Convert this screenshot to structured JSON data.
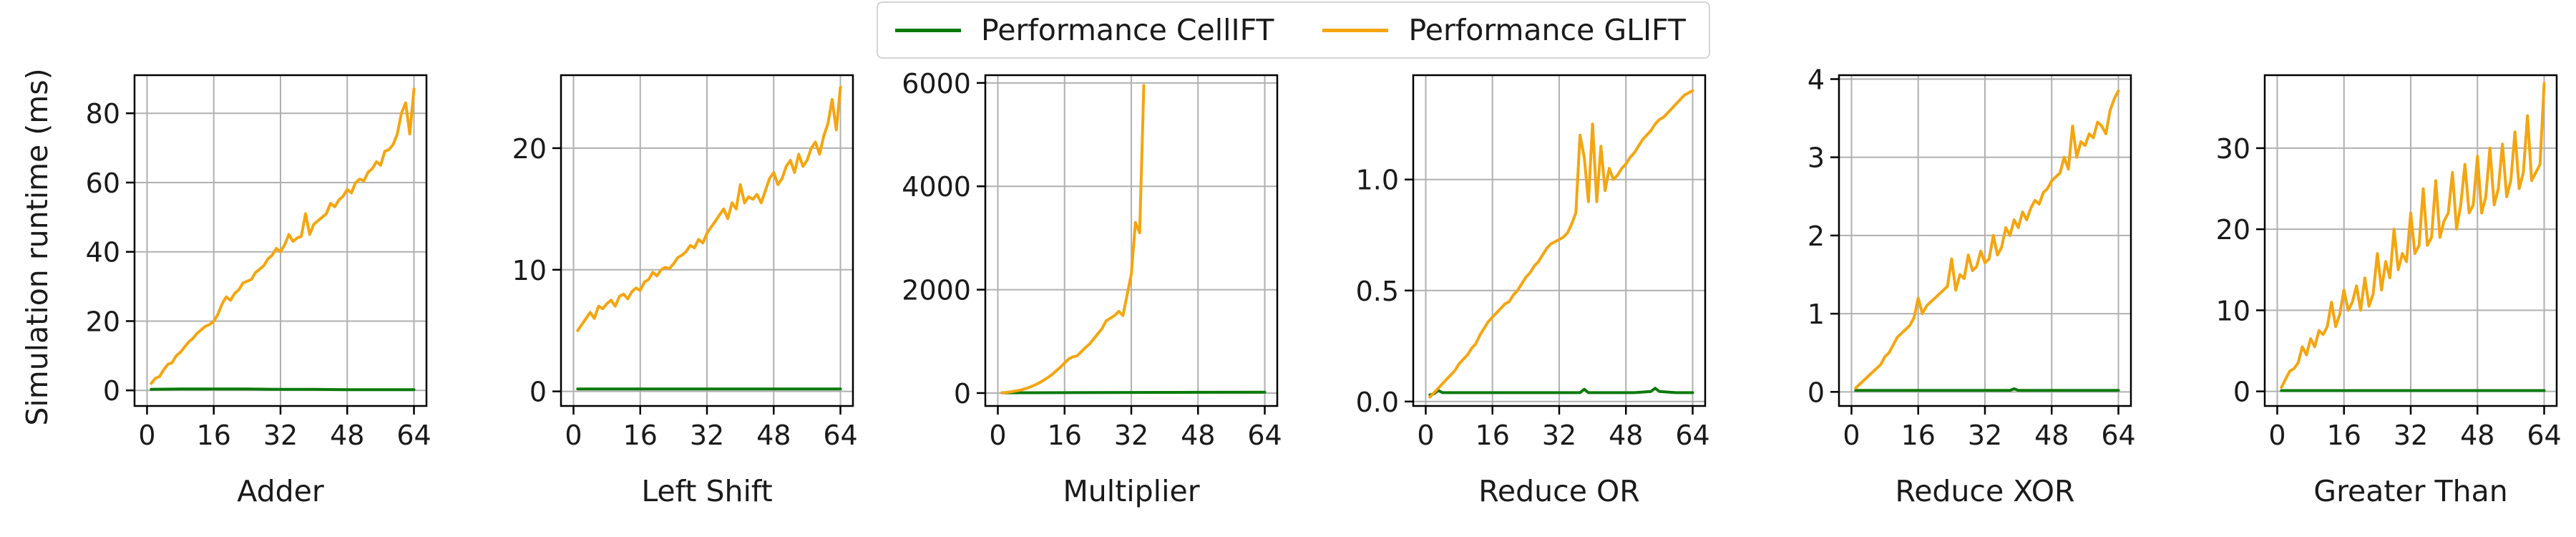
{
  "legend": {
    "placement": "upper-center",
    "items": [
      {
        "label": "Performance CellIFT",
        "color": "#0b7a0b"
      },
      {
        "label": "Performance GLIFT",
        "color": "#f5a50f"
      }
    ]
  },
  "shared_ylabel": "Simulation runtime (ms)",
  "chart_data": [
    {
      "type": "line",
      "xlabel": "Adder",
      "ylabel": "Simulation runtime (ms)",
      "xlim": [
        -3,
        67
      ],
      "ylim": [
        -4.5,
        91
      ],
      "xticks": [
        0,
        16,
        32,
        48,
        64
      ],
      "yticks": [
        0,
        20,
        40,
        60,
        80
      ],
      "grid": true,
      "series": [
        {
          "name": "Performance CellIFT",
          "color": "#0b7a0b",
          "x": [
            1,
            8,
            16,
            24,
            32,
            40,
            48,
            56,
            64
          ],
          "y": [
            0.3,
            0.4,
            0.4,
            0.4,
            0.3,
            0.3,
            0.2,
            0.2,
            0.2
          ]
        },
        {
          "name": "Performance GLIFT",
          "color": "#f5a50f",
          "x": [
            1,
            2,
            3,
            4,
            5,
            6,
            7,
            8,
            9,
            10,
            11,
            12,
            13,
            14,
            15,
            16,
            17,
            18,
            19,
            20,
            21,
            22,
            23,
            24,
            25,
            26,
            27,
            28,
            29,
            30,
            31,
            32,
            33,
            34,
            35,
            36,
            37,
            38,
            39,
            40,
            41,
            42,
            43,
            44,
            45,
            46,
            47,
            48,
            49,
            50,
            51,
            52,
            53,
            54,
            55,
            56,
            57,
            58,
            59,
            60,
            61,
            62,
            63,
            64
          ],
          "y": [
            2,
            3.5,
            4,
            6,
            7.5,
            8,
            10,
            11,
            12.5,
            14,
            15,
            16.5,
            17.5,
            18.5,
            19,
            20,
            22,
            25,
            27,
            26,
            28,
            29,
            31,
            31.5,
            32,
            34,
            35,
            36,
            38,
            39,
            41,
            40,
            42,
            45,
            43,
            44,
            44.5,
            51,
            45,
            48,
            49,
            50,
            51,
            54,
            53,
            55,
            56,
            58,
            57,
            60,
            61,
            60.5,
            63,
            64,
            66,
            65,
            69,
            69.5,
            71,
            74,
            80,
            83,
            74,
            87
          ]
        }
      ]
    },
    {
      "type": "line",
      "xlabel": "Left Shift",
      "ylabel": "",
      "xlim": [
        -3,
        67
      ],
      "ylim": [
        -1.2,
        26
      ],
      "xticks": [
        0,
        16,
        32,
        48,
        64
      ],
      "yticks": [
        0,
        10,
        20
      ],
      "grid": true,
      "series": [
        {
          "name": "Performance CellIFT",
          "color": "#0b7a0b",
          "x": [
            1,
            16,
            32,
            48,
            64
          ],
          "y": [
            0.2,
            0.2,
            0.2,
            0.2,
            0.2
          ]
        },
        {
          "name": "Performance GLIFT",
          "color": "#f5a50f",
          "x": [
            1,
            2,
            3,
            4,
            5,
            6,
            7,
            8,
            9,
            10,
            11,
            12,
            13,
            14,
            15,
            16,
            17,
            18,
            19,
            20,
            21,
            22,
            23,
            24,
            25,
            26,
            27,
            28,
            29,
            30,
            31,
            32,
            33,
            34,
            35,
            36,
            37,
            38,
            39,
            40,
            41,
            42,
            43,
            44,
            45,
            46,
            47,
            48,
            49,
            50,
            51,
            52,
            53,
            54,
            55,
            56,
            57,
            58,
            59,
            60,
            61,
            62,
            63,
            64
          ],
          "y": [
            5,
            5.5,
            6,
            6.5,
            6,
            7,
            6.8,
            7.2,
            7.5,
            7,
            7.8,
            8,
            7.6,
            8.2,
            8.5,
            8.3,
            9,
            9.2,
            9.8,
            9.5,
            10,
            10.2,
            10.1,
            10.5,
            11,
            11.2,
            11.5,
            12,
            11.8,
            12.5,
            12.2,
            13,
            13.5,
            14,
            14.5,
            15,
            14.2,
            15.5,
            15,
            17,
            15.5,
            16,
            15.8,
            16.2,
            15.5,
            16.5,
            17.5,
            18,
            17,
            17.5,
            18.5,
            19,
            18,
            19.5,
            18.5,
            19,
            20,
            20.5,
            19.5,
            21,
            22,
            24,
            21.5,
            25
          ]
        }
      ]
    },
    {
      "type": "line",
      "xlabel": "Multiplier",
      "ylabel": "",
      "xlim": [
        -3,
        67
      ],
      "ylim": [
        -250,
        6150
      ],
      "xticks": [
        0,
        16,
        32,
        48,
        64
      ],
      "yticks": [
        0,
        2000,
        4000,
        6000
      ],
      "grid": true,
      "series": [
        {
          "name": "Performance CellIFT",
          "color": "#0b7a0b",
          "x": [
            1,
            16,
            32,
            48,
            64
          ],
          "y": [
            5,
            8,
            12,
            14,
            16
          ]
        },
        {
          "name": "Performance GLIFT",
          "color": "#f5a50f",
          "x": [
            1,
            2,
            3,
            4,
            5,
            6,
            7,
            8,
            9,
            10,
            11,
            12,
            13,
            14,
            15,
            16,
            17,
            18,
            19,
            20,
            21,
            22,
            23,
            24,
            25,
            26,
            27,
            28,
            29,
            30,
            31,
            32,
            33,
            34,
            35
          ],
          "y": [
            5,
            12,
            22,
            35,
            50,
            70,
            95,
            125,
            160,
            200,
            250,
            300,
            360,
            430,
            500,
            580,
            660,
            700,
            720,
            800,
            880,
            950,
            1050,
            1150,
            1250,
            1400,
            1450,
            1500,
            1580,
            1500,
            1900,
            2300,
            3300,
            3100,
            5950
          ]
        }
      ]
    },
    {
      "type": "line",
      "xlabel": "Reduce OR",
      "ylabel": "",
      "xlim": [
        -3,
        67
      ],
      "ylim": [
        -0.02,
        1.47
      ],
      "xticks": [
        0,
        16,
        32,
        48,
        64
      ],
      "yticks": [
        0.0,
        0.5,
        1.0
      ],
      "ytick_labels": [
        "0.0",
        "0.5",
        "1.0"
      ],
      "grid": true,
      "series": [
        {
          "name": "Performance CellIFT",
          "color": "#0b7a0b",
          "x": [
            1,
            2,
            3,
            4,
            10,
            20,
            30,
            37,
            38,
            39,
            45,
            50,
            54,
            55,
            56,
            60,
            64
          ],
          "y": [
            0.03,
            0.035,
            0.05,
            0.04,
            0.04,
            0.04,
            0.04,
            0.04,
            0.055,
            0.04,
            0.04,
            0.04,
            0.045,
            0.06,
            0.045,
            0.04,
            0.04
          ]
        },
        {
          "name": "Performance GLIFT",
          "color": "#f5a50f",
          "x": [
            1,
            2,
            3,
            4,
            5,
            6,
            7,
            8,
            9,
            10,
            11,
            12,
            13,
            14,
            15,
            16,
            17,
            18,
            19,
            20,
            21,
            22,
            23,
            24,
            25,
            26,
            27,
            28,
            29,
            30,
            31,
            32,
            33,
            34,
            35,
            36,
            37,
            38,
            39,
            40,
            41,
            42,
            43,
            44,
            45,
            46,
            47,
            48,
            49,
            50,
            51,
            52,
            53,
            54,
            55,
            56,
            57,
            58,
            59,
            60,
            61,
            62,
            63,
            64
          ],
          "y": [
            0.02,
            0.04,
            0.06,
            0.08,
            0.1,
            0.12,
            0.14,
            0.17,
            0.19,
            0.21,
            0.24,
            0.26,
            0.3,
            0.33,
            0.36,
            0.38,
            0.4,
            0.42,
            0.44,
            0.45,
            0.48,
            0.5,
            0.53,
            0.56,
            0.58,
            0.61,
            0.63,
            0.66,
            0.69,
            0.71,
            0.72,
            0.73,
            0.74,
            0.76,
            0.8,
            0.85,
            1.2,
            1.1,
            0.9,
            1.25,
            0.9,
            1.15,
            0.95,
            1.05,
            1.0,
            1.02,
            1.05,
            1.07,
            1.1,
            1.12,
            1.15,
            1.18,
            1.2,
            1.22,
            1.25,
            1.27,
            1.28,
            1.3,
            1.32,
            1.34,
            1.36,
            1.38,
            1.39,
            1.4
          ]
        }
      ]
    },
    {
      "type": "line",
      "xlabel": "Reduce XOR",
      "ylabel": "",
      "xlim": [
        -3,
        67
      ],
      "ylim": [
        -0.18,
        4.05
      ],
      "xticks": [
        0,
        16,
        32,
        48,
        64
      ],
      "yticks": [
        0,
        1,
        2,
        3,
        4
      ],
      "grid": true,
      "series": [
        {
          "name": "Performance CellIFT",
          "color": "#0b7a0b",
          "x": [
            1,
            10,
            20,
            30,
            38,
            39,
            40,
            50,
            64
          ],
          "y": [
            0.02,
            0.02,
            0.02,
            0.02,
            0.02,
            0.04,
            0.02,
            0.02,
            0.02
          ]
        },
        {
          "name": "Performance GLIFT",
          "color": "#f5a50f",
          "x": [
            1,
            2,
            3,
            4,
            5,
            6,
            7,
            8,
            9,
            10,
            11,
            12,
            13,
            14,
            15,
            16,
            17,
            18,
            19,
            20,
            21,
            22,
            23,
            24,
            25,
            26,
            27,
            28,
            29,
            30,
            31,
            32,
            33,
            34,
            35,
            36,
            37,
            38,
            39,
            40,
            41,
            42,
            43,
            44,
            45,
            46,
            47,
            48,
            49,
            50,
            51,
            52,
            53,
            54,
            55,
            56,
            57,
            58,
            59,
            60,
            61,
            62,
            63,
            64
          ],
          "y": [
            0.05,
            0.1,
            0.15,
            0.2,
            0.25,
            0.3,
            0.35,
            0.45,
            0.5,
            0.6,
            0.7,
            0.75,
            0.8,
            0.85,
            0.95,
            1.2,
            1.0,
            1.1,
            1.15,
            1.2,
            1.25,
            1.3,
            1.35,
            1.7,
            1.3,
            1.5,
            1.45,
            1.75,
            1.55,
            1.6,
            1.8,
            1.65,
            1.7,
            2.0,
            1.75,
            1.85,
            2.1,
            2.0,
            2.2,
            2.1,
            2.3,
            2.2,
            2.35,
            2.45,
            2.4,
            2.55,
            2.6,
            2.7,
            2.75,
            2.8,
            3.0,
            2.85,
            3.4,
            3.0,
            3.2,
            3.15,
            3.3,
            3.25,
            3.45,
            3.4,
            3.3,
            3.6,
            3.75,
            3.85
          ]
        }
      ]
    },
    {
      "type": "line",
      "xlabel": "Greater Than",
      "ylabel": "",
      "xlim": [
        -3,
        67
      ],
      "ylim": [
        -1.8,
        39
      ],
      "xticks": [
        0,
        16,
        32,
        48,
        64
      ],
      "yticks": [
        0,
        10,
        20,
        30
      ],
      "grid": true,
      "series": [
        {
          "name": "Performance CellIFT",
          "color": "#0b7a0b",
          "x": [
            1,
            16,
            32,
            48,
            64
          ],
          "y": [
            0.1,
            0.1,
            0.1,
            0.1,
            0.1
          ]
        },
        {
          "name": "Performance GLIFT",
          "color": "#f5a50f",
          "x": [
            1,
            2,
            3,
            4,
            5,
            6,
            7,
            8,
            9,
            10,
            11,
            12,
            13,
            14,
            15,
            16,
            17,
            18,
            19,
            20,
            21,
            22,
            23,
            24,
            25,
            26,
            27,
            28,
            29,
            30,
            31,
            32,
            33,
            34,
            35,
            36,
            37,
            38,
            39,
            40,
            41,
            42,
            43,
            44,
            45,
            46,
            47,
            48,
            49,
            50,
            51,
            52,
            53,
            54,
            55,
            56,
            57,
            58,
            59,
            60,
            61,
            62,
            63,
            64
          ],
          "y": [
            0.5,
            1.5,
            2.5,
            2.8,
            3.5,
            5.5,
            4.5,
            6.5,
            5.5,
            7.5,
            7,
            8,
            11,
            8,
            9.5,
            12.5,
            10,
            11,
            13,
            10,
            14,
            10.5,
            12,
            17,
            12.5,
            16,
            14,
            20,
            15,
            17,
            16,
            22,
            17,
            18,
            25,
            18,
            19,
            26,
            19,
            21,
            22,
            27,
            20,
            23,
            28,
            22,
            23,
            29,
            22,
            24,
            30,
            23,
            25,
            30.5,
            24,
            26,
            32,
            25,
            27,
            34,
            26,
            27,
            28,
            38
          ]
        }
      ]
    }
  ]
}
